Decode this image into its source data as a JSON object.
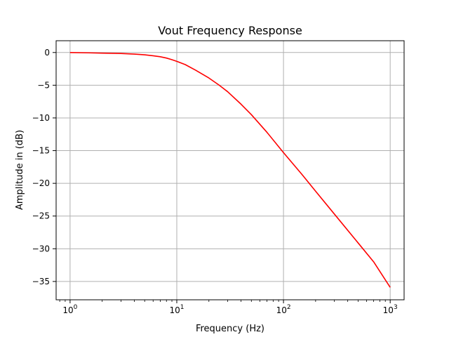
{
  "chart_data": {
    "type": "line",
    "title": "Vout Frequency Response",
    "xlabel": "Frequency (Hz)",
    "ylabel": "Amplitude in (dB)",
    "x_scale": "log",
    "xlim": [
      0.74,
      1350
    ],
    "ylim": [
      -37.8,
      1.8
    ],
    "grid": true,
    "x_ticks": [
      {
        "value": 1,
        "base": "10",
        "exp": "0"
      },
      {
        "value": 10,
        "base": "10",
        "exp": "1"
      },
      {
        "value": 100,
        "base": "10",
        "exp": "2"
      },
      {
        "value": 1000,
        "base": "10",
        "exp": "3"
      }
    ],
    "y_ticks": [
      {
        "value": 0,
        "label": "0"
      },
      {
        "value": -5,
        "label": "−5"
      },
      {
        "value": -10,
        "label": "−10"
      },
      {
        "value": -15,
        "label": "−15"
      },
      {
        "value": -20,
        "label": "−20"
      },
      {
        "value": -25,
        "label": "−25"
      },
      {
        "value": -30,
        "label": "−30"
      },
      {
        "value": -35,
        "label": "−35"
      }
    ],
    "series": [
      {
        "color": "#ff0000",
        "x": [
          1,
          1.5,
          2,
          3,
          4,
          5,
          6,
          7,
          8,
          9,
          10,
          12,
          15,
          20,
          25,
          30,
          40,
          50,
          70,
          100,
          150,
          200,
          300,
          500,
          700,
          1000
        ],
        "y": [
          0,
          -0.05,
          -0.1,
          -0.15,
          -0.25,
          -0.35,
          -0.5,
          -0.65,
          -0.85,
          -1.1,
          -1.35,
          -1.85,
          -2.7,
          -3.9,
          -5.0,
          -6.0,
          -7.9,
          -9.5,
          -12.2,
          -15.3,
          -18.7,
          -21.2,
          -24.7,
          -29.1,
          -32.0,
          -35.9
        ]
      }
    ]
  }
}
